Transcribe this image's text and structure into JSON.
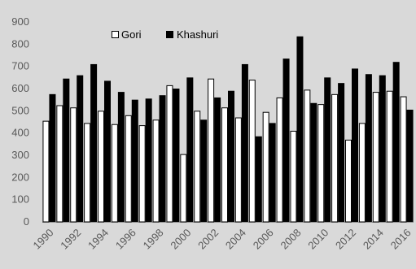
{
  "chart_data": {
    "type": "bar",
    "title": "",
    "xlabel": "",
    "ylabel": "",
    "ylim": [
      0,
      900
    ],
    "yticks": [
      0,
      100,
      200,
      300,
      400,
      500,
      600,
      700,
      800,
      900
    ],
    "categories": [
      "1990",
      "1991",
      "1992",
      "1993",
      "1994",
      "1995",
      "1996",
      "1997",
      "1998",
      "1999",
      "2000",
      "2001",
      "2002",
      "2003",
      "2004",
      "2005",
      "2006",
      "2007",
      "2008",
      "2009",
      "2010",
      "2011",
      "2012",
      "2013",
      "2014",
      "2015",
      "2016"
    ],
    "xtick_labels": [
      "1990",
      "",
      "1992",
      "",
      "1994",
      "",
      "1996",
      "",
      "1998",
      "",
      "2000",
      "",
      "2002",
      "",
      "2004",
      "",
      "2006",
      "",
      "2008",
      "",
      "2010",
      "",
      "2012",
      "",
      "2014",
      "",
      "2016"
    ],
    "grid": false,
    "legend_position": "top-center",
    "series": [
      {
        "name": "Gori",
        "fill": "#ffffff",
        "stroke": "#000000",
        "values": [
          455,
          525,
          515,
          445,
          500,
          440,
          480,
          435,
          460,
          615,
          305,
          500,
          645,
          515,
          470,
          640,
          495,
          560,
          410,
          595,
          530,
          575,
          370,
          445,
          585,
          590,
          565
        ]
      },
      {
        "name": "Khashuri",
        "fill": "#000000",
        "stroke": "#000000",
        "values": [
          575,
          645,
          660,
          710,
          635,
          585,
          550,
          555,
          570,
          600,
          650,
          460,
          560,
          590,
          710,
          385,
          445,
          735,
          835,
          535,
          650,
          625,
          690,
          665,
          660,
          720,
          505
        ]
      }
    ]
  }
}
